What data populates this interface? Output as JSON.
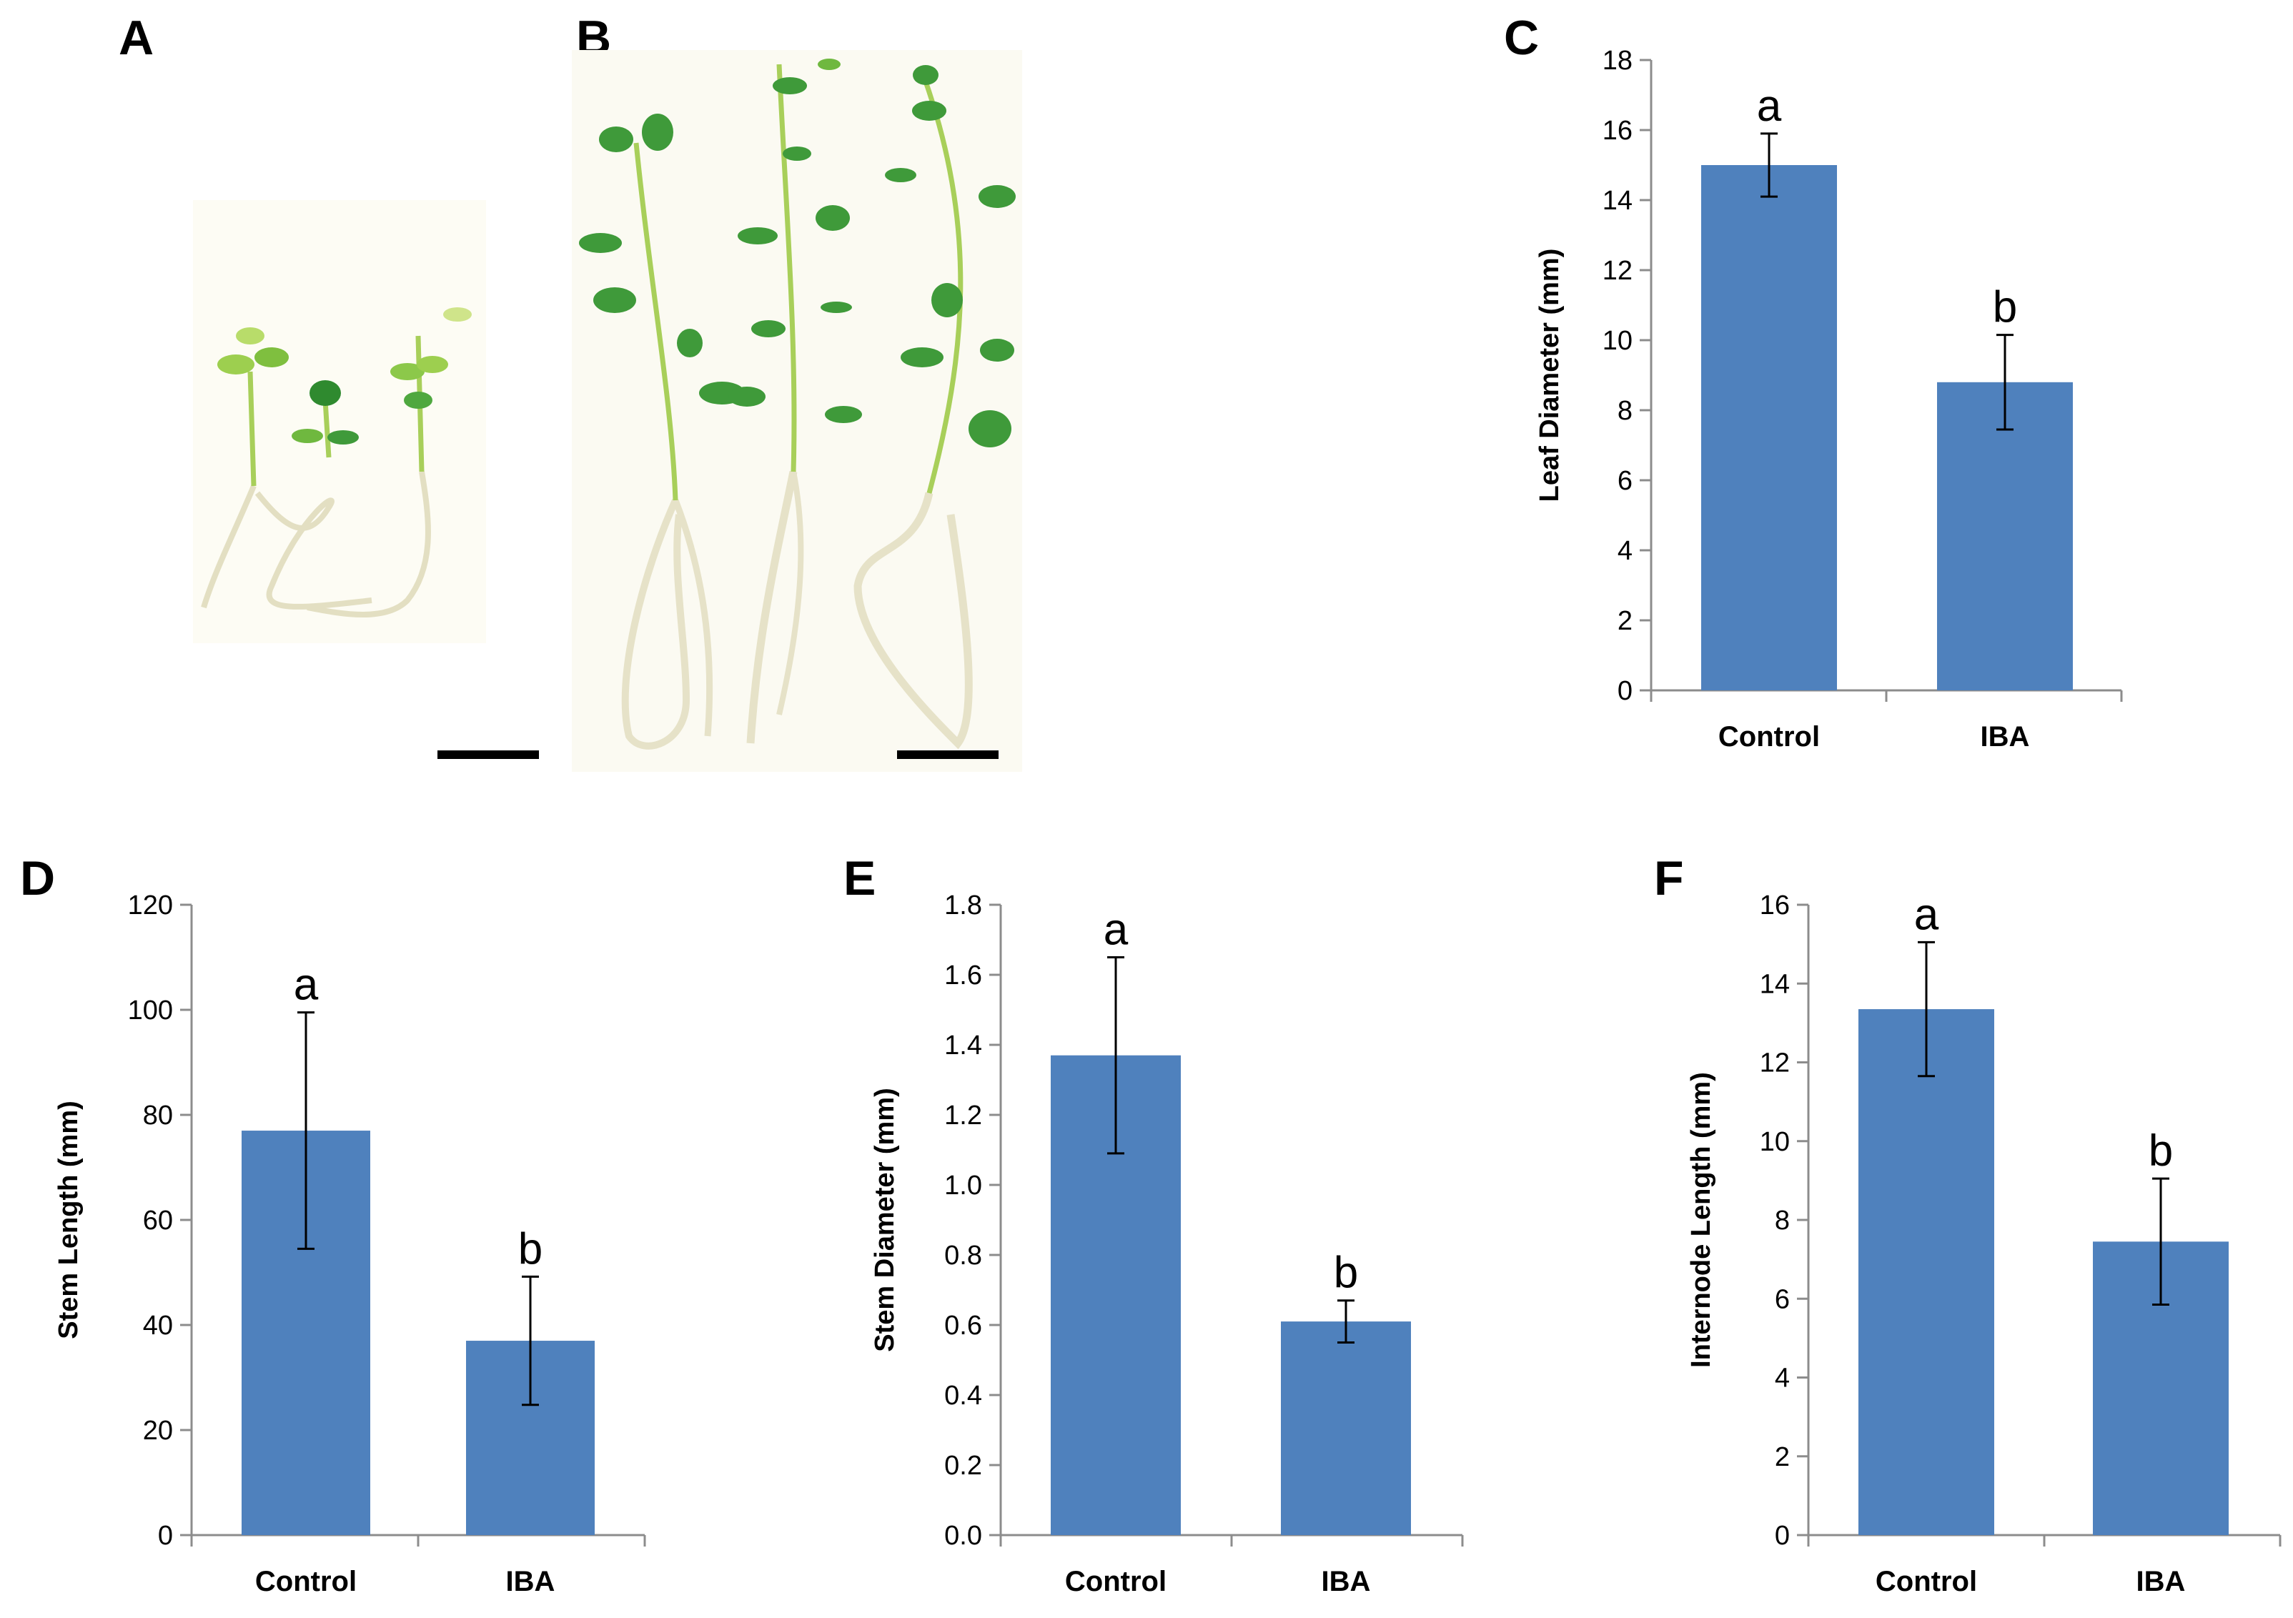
{
  "panels": {
    "A": {
      "letter": "A"
    },
    "B": {
      "letter": "B"
    }
  },
  "colors": {
    "bar": "#4f81bd",
    "stem": "#a8cf5a",
    "leaf": "#3f9a3a",
    "root": "#e6e2c8"
  },
  "chart_data": [
    {
      "panel": "C",
      "type": "bar",
      "categories": [
        "Control",
        "IBA"
      ],
      "values": [
        15.0,
        8.8
      ],
      "errors": [
        0.9,
        1.35
      ],
      "significance": [
        "a",
        "b"
      ],
      "ylabel": "Leaf Diameter (mm)",
      "ylim": [
        0,
        18
      ],
      "yticks": [
        "0",
        "2",
        "4",
        "6",
        "8",
        "10",
        "12",
        "14",
        "16",
        "18"
      ]
    },
    {
      "panel": "D",
      "type": "bar",
      "categories": [
        "Control",
        "IBA"
      ],
      "values": [
        77,
        37
      ],
      "errors": [
        22.5,
        12.2
      ],
      "significance": [
        "a",
        "b"
      ],
      "ylabel": "Stem Length (mm)",
      "ylim": [
        0,
        120
      ],
      "yticks": [
        "0",
        "20",
        "40",
        "60",
        "80",
        "100",
        "120"
      ]
    },
    {
      "panel": "E",
      "type": "bar",
      "categories": [
        "Control",
        "IBA"
      ],
      "values": [
        1.37,
        0.61
      ],
      "errors": [
        0.28,
        0.06
      ],
      "significance": [
        "a",
        "b"
      ],
      "ylabel": "Stem Diameter (mm)",
      "ylim": [
        0,
        1.8
      ],
      "yticks": [
        "0.0",
        "0.2",
        "0.4",
        "0.6",
        "0.8",
        "1.0",
        "1.2",
        "1.4",
        "1.6",
        "1.8"
      ]
    },
    {
      "panel": "F",
      "type": "bar",
      "categories": [
        "Control",
        "IBA"
      ],
      "values": [
        13.35,
        7.45
      ],
      "errors": [
        1.7,
        1.6
      ],
      "significance": [
        "a",
        "b"
      ],
      "ylabel": "Internode Length (mm)",
      "ylim": [
        0,
        16
      ],
      "yticks": [
        "0",
        "2",
        "4",
        "6",
        "8",
        "10",
        "12",
        "14",
        "16"
      ]
    }
  ]
}
